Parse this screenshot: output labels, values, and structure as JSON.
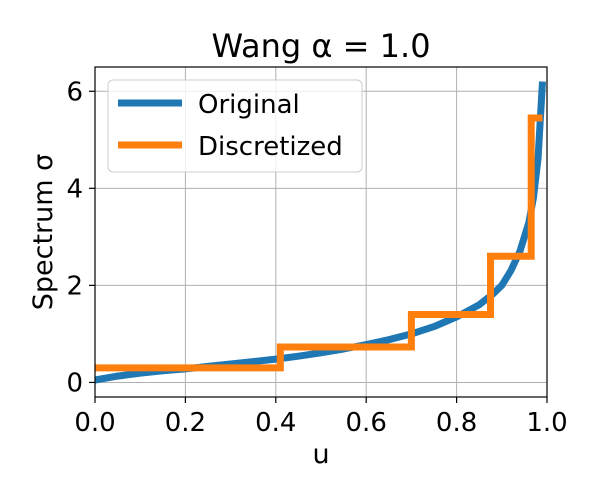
{
  "chart_data": {
    "type": "line",
    "title": "Wang α = 1.0",
    "xlabel": "u",
    "ylabel": "Spectrum σ",
    "xlim": [
      0.0,
      1.0
    ],
    "ylim": [
      -0.3,
      6.5
    ],
    "xticks": [
      "0.0",
      "0.2",
      "0.4",
      "0.6",
      "0.8",
      "1.0"
    ],
    "xtick_values": [
      0.0,
      0.2,
      0.4,
      0.6,
      0.8,
      1.0
    ],
    "yticks": [
      "0",
      "2",
      "4",
      "6"
    ],
    "ytick_values": [
      0,
      2,
      4,
      6
    ],
    "grid": true,
    "legend_position": "top-left",
    "series": [
      {
        "name": "Original",
        "color": "#1f77b4",
        "style": "smooth",
        "x": [
          0.0,
          0.05,
          0.1,
          0.15,
          0.2,
          0.25,
          0.3,
          0.35,
          0.4,
          0.45,
          0.5,
          0.55,
          0.6,
          0.65,
          0.7,
          0.75,
          0.8,
          0.85,
          0.88,
          0.9,
          0.92,
          0.94,
          0.96,
          0.97,
          0.98,
          0.99
        ],
        "y": [
          0.05,
          0.13,
          0.19,
          0.24,
          0.28,
          0.33,
          0.38,
          0.43,
          0.48,
          0.54,
          0.61,
          0.69,
          0.78,
          0.88,
          1.0,
          1.15,
          1.35,
          1.6,
          1.82,
          2.0,
          2.3,
          2.7,
          3.3,
          3.8,
          4.6,
          6.2
        ]
      },
      {
        "name": "Discretized",
        "color": "#ff7f0e",
        "style": "step",
        "x": [
          0.0,
          0.41,
          0.41,
          0.7,
          0.7,
          0.875,
          0.875,
          0.965,
          0.965,
          0.99
        ],
        "y": [
          0.3,
          0.3,
          0.73,
          0.73,
          1.4,
          1.4,
          2.6,
          2.6,
          5.45,
          5.45
        ]
      }
    ]
  }
}
